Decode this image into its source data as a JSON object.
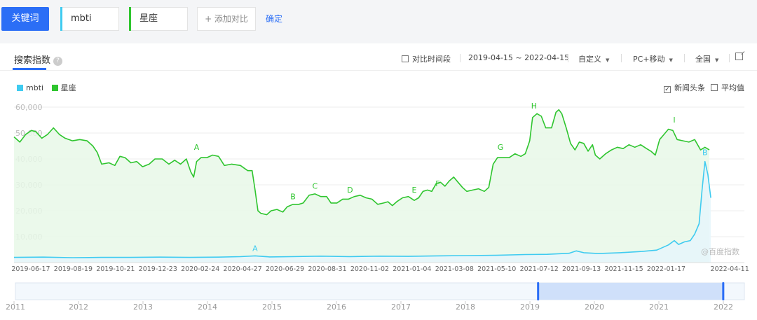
{
  "search": {
    "keyword_button": "关键词",
    "terms": [
      {
        "label": "mbti",
        "color": "#3fcbf0"
      },
      {
        "label": "星座",
        "color": "#2fc52f"
      }
    ],
    "add_compare": "+ 添加对比",
    "confirm": "确定"
  },
  "panel": {
    "title": "搜索指数",
    "help_icon": "help-circle-icon",
    "compare_period": "对比时间段",
    "date_range": "2019-04-15 ~ 2022-04-15",
    "custom": "自定义",
    "platform": "PC+移动",
    "region": "全国",
    "news_headlines": "新闻头条",
    "average": "平均值",
    "export_icon": "external-link-icon",
    "watermark": "@百度指数"
  },
  "chart_data": {
    "type": "area",
    "ylim": [
      0,
      60000
    ],
    "yticks": [
      10000,
      20000,
      30000,
      40000,
      50000,
      60000
    ],
    "ytick_labels": [
      "10,000",
      "20,000",
      "30,000",
      "40,000",
      "50,000",
      "60,000"
    ],
    "xticks": [
      {
        "t": 0.023,
        "label": "2019-06-17"
      },
      {
        "t": 0.081,
        "label": "2019-08-19"
      },
      {
        "t": 0.139,
        "label": "2019-10-21"
      },
      {
        "t": 0.197,
        "label": "2019-12-23"
      },
      {
        "t": 0.255,
        "label": "2020-02-24"
      },
      {
        "t": 0.313,
        "label": "2020-04-27"
      },
      {
        "t": 0.371,
        "label": "2020-06-29"
      },
      {
        "t": 0.429,
        "label": "2020-08-31"
      },
      {
        "t": 0.487,
        "label": "2020-11-02"
      },
      {
        "t": 0.545,
        "label": "2021-01-04"
      },
      {
        "t": 0.603,
        "label": "2021-03-08"
      },
      {
        "t": 0.661,
        "label": "2021-05-10"
      },
      {
        "t": 0.719,
        "label": "2021-07-12"
      },
      {
        "t": 0.777,
        "label": "2021-09-13"
      },
      {
        "t": 0.835,
        "label": "2021-11-15"
      },
      {
        "t": 0.893,
        "label": "2022-01-17"
      },
      {
        "t": 0.98,
        "label": "2022-04-11"
      }
    ],
    "series": [
      {
        "name": "星座",
        "color": "#2fc52f",
        "fill": "#e8f8e8",
        "points": [
          [
            0.0,
            48500
          ],
          [
            0.008,
            46500
          ],
          [
            0.016,
            49500
          ],
          [
            0.024,
            51000
          ],
          [
            0.03,
            50500
          ],
          [
            0.038,
            48000
          ],
          [
            0.046,
            49500
          ],
          [
            0.054,
            52000
          ],
          [
            0.062,
            49500
          ],
          [
            0.07,
            48000
          ],
          [
            0.08,
            47000
          ],
          [
            0.09,
            47500
          ],
          [
            0.1,
            47000
          ],
          [
            0.108,
            45000
          ],
          [
            0.114,
            42500
          ],
          [
            0.12,
            38000
          ],
          [
            0.13,
            38500
          ],
          [
            0.138,
            37500
          ],
          [
            0.145,
            41000
          ],
          [
            0.152,
            40500
          ],
          [
            0.16,
            38500
          ],
          [
            0.168,
            39000
          ],
          [
            0.176,
            37000
          ],
          [
            0.185,
            38000
          ],
          [
            0.193,
            40000
          ],
          [
            0.203,
            40000
          ],
          [
            0.212,
            38000
          ],
          [
            0.22,
            39500
          ],
          [
            0.228,
            38000
          ],
          [
            0.236,
            40000
          ],
          [
            0.242,
            35000
          ],
          [
            0.246,
            33000
          ],
          [
            0.25,
            39000
          ],
          [
            0.256,
            40500
          ],
          [
            0.264,
            40500
          ],
          [
            0.272,
            41500
          ],
          [
            0.28,
            41000
          ],
          [
            0.288,
            37500
          ],
          [
            0.298,
            38000
          ],
          [
            0.31,
            37500
          ],
          [
            0.32,
            35500
          ],
          [
            0.326,
            35500
          ],
          [
            0.33,
            28000
          ],
          [
            0.334,
            20000
          ],
          [
            0.338,
            19000
          ],
          [
            0.346,
            18500
          ],
          [
            0.352,
            20000
          ],
          [
            0.36,
            20500
          ],
          [
            0.368,
            19500
          ],
          [
            0.374,
            21500
          ],
          [
            0.382,
            22500
          ],
          [
            0.39,
            22500
          ],
          [
            0.396,
            23000
          ],
          [
            0.404,
            26000
          ],
          [
            0.412,
            26500
          ],
          [
            0.42,
            25500
          ],
          [
            0.428,
            25500
          ],
          [
            0.434,
            23000
          ],
          [
            0.442,
            23000
          ],
          [
            0.45,
            24500
          ],
          [
            0.458,
            24500
          ],
          [
            0.466,
            25500
          ],
          [
            0.474,
            26000
          ],
          [
            0.482,
            25000
          ],
          [
            0.49,
            24500
          ],
          [
            0.498,
            22500
          ],
          [
            0.506,
            23000
          ],
          [
            0.512,
            23500
          ],
          [
            0.518,
            22000
          ],
          [
            0.524,
            23500
          ],
          [
            0.532,
            25000
          ],
          [
            0.54,
            25500
          ],
          [
            0.548,
            24000
          ],
          [
            0.554,
            25000
          ],
          [
            0.56,
            27500
          ],
          [
            0.566,
            28000
          ],
          [
            0.572,
            27500
          ],
          [
            0.578,
            30500
          ],
          [
            0.584,
            31000
          ],
          [
            0.59,
            29500
          ],
          [
            0.596,
            31500
          ],
          [
            0.602,
            33000
          ],
          [
            0.608,
            31000
          ],
          [
            0.614,
            29000
          ],
          [
            0.62,
            27500
          ],
          [
            0.628,
            28000
          ],
          [
            0.636,
            28500
          ],
          [
            0.644,
            27500
          ],
          [
            0.65,
            29000
          ],
          [
            0.656,
            38000
          ],
          [
            0.662,
            40500
          ],
          [
            0.67,
            40500
          ],
          [
            0.678,
            40500
          ],
          [
            0.686,
            42000
          ],
          [
            0.694,
            41000
          ],
          [
            0.7,
            42000
          ],
          [
            0.706,
            47000
          ],
          [
            0.71,
            56000
          ],
          [
            0.716,
            57500
          ],
          [
            0.722,
            56500
          ],
          [
            0.728,
            52000
          ],
          [
            0.736,
            52000
          ],
          [
            0.742,
            58000
          ],
          [
            0.746,
            59000
          ],
          [
            0.75,
            57500
          ],
          [
            0.756,
            52000
          ],
          [
            0.762,
            46000
          ],
          [
            0.768,
            43500
          ],
          [
            0.774,
            46500
          ],
          [
            0.78,
            46000
          ],
          [
            0.786,
            43000
          ],
          [
            0.792,
            45500
          ],
          [
            0.796,
            41500
          ],
          [
            0.802,
            40000
          ],
          [
            0.81,
            42000
          ],
          [
            0.818,
            43500
          ],
          [
            0.826,
            44500
          ],
          [
            0.834,
            44000
          ],
          [
            0.842,
            45500
          ],
          [
            0.85,
            44500
          ],
          [
            0.858,
            45500
          ],
          [
            0.866,
            44000
          ],
          [
            0.872,
            43000
          ],
          [
            0.878,
            41500
          ],
          [
            0.884,
            47500
          ],
          [
            0.89,
            49500
          ],
          [
            0.896,
            51500
          ],
          [
            0.902,
            51000
          ],
          [
            0.908,
            47500
          ],
          [
            0.916,
            47000
          ],
          [
            0.924,
            46500
          ],
          [
            0.932,
            47500
          ],
          [
            0.94,
            43500
          ],
          [
            0.946,
            44500
          ],
          [
            0.952,
            43500
          ]
        ]
      },
      {
        "name": "mbti",
        "color": "#3fcbf0",
        "fill": "#e6f6fc",
        "points": [
          [
            0.0,
            2000
          ],
          [
            0.04,
            2100
          ],
          [
            0.08,
            1900
          ],
          [
            0.12,
            2000
          ],
          [
            0.16,
            2000
          ],
          [
            0.2,
            2100
          ],
          [
            0.24,
            2000
          ],
          [
            0.28,
            2100
          ],
          [
            0.31,
            2300
          ],
          [
            0.33,
            2600
          ],
          [
            0.35,
            2200
          ],
          [
            0.38,
            2300
          ],
          [
            0.42,
            2500
          ],
          [
            0.46,
            2300
          ],
          [
            0.5,
            2500
          ],
          [
            0.54,
            2400
          ],
          [
            0.58,
            2600
          ],
          [
            0.62,
            2700
          ],
          [
            0.66,
            2800
          ],
          [
            0.7,
            3100
          ],
          [
            0.73,
            3200
          ],
          [
            0.76,
            3600
          ],
          [
            0.77,
            4500
          ],
          [
            0.78,
            3800
          ],
          [
            0.8,
            3500
          ],
          [
            0.83,
            3800
          ],
          [
            0.86,
            4300
          ],
          [
            0.88,
            4800
          ],
          [
            0.896,
            6800
          ],
          [
            0.904,
            8500
          ],
          [
            0.91,
            7000
          ],
          [
            0.918,
            8000
          ],
          [
            0.926,
            8500
          ],
          [
            0.932,
            11000
          ],
          [
            0.938,
            15000
          ],
          [
            0.942,
            28000
          ],
          [
            0.946,
            39000
          ],
          [
            0.95,
            34000
          ],
          [
            0.954,
            25000
          ]
        ]
      }
    ],
    "annotations": [
      {
        "series": "星座",
        "letter": "A",
        "t": 0.25,
        "value": 43500
      },
      {
        "series": "星座",
        "letter": "B",
        "t": 0.382,
        "value": 24500
      },
      {
        "series": "星座",
        "letter": "C",
        "t": 0.412,
        "value": 28500
      },
      {
        "series": "星座",
        "letter": "D",
        "t": 0.46,
        "value": 27000
      },
      {
        "series": "星座",
        "letter": "E",
        "t": 0.548,
        "value": 27000
      },
      {
        "series": "星座",
        "letter": "F",
        "t": 0.58,
        "value": 29500
      },
      {
        "series": "星座",
        "letter": "G",
        "t": 0.666,
        "value": 43500
      },
      {
        "series": "星座",
        "letter": "H",
        "t": 0.712,
        "value": 59500
      },
      {
        "series": "星座",
        "letter": "I",
        "t": 0.904,
        "value": 54000
      },
      {
        "series": "mbti",
        "letter": "A",
        "t": 0.33,
        "value": 4500
      },
      {
        "series": "mbti",
        "letter": "B",
        "t": 0.946,
        "value": 41500
      }
    ],
    "overview_years": [
      "2011",
      "2012",
      "2013",
      "2014",
      "2015",
      "2016",
      "2017",
      "2018",
      "2019",
      "2020",
      "2021",
      "2022"
    ],
    "overview_selection": [
      0.717,
      0.971
    ]
  }
}
